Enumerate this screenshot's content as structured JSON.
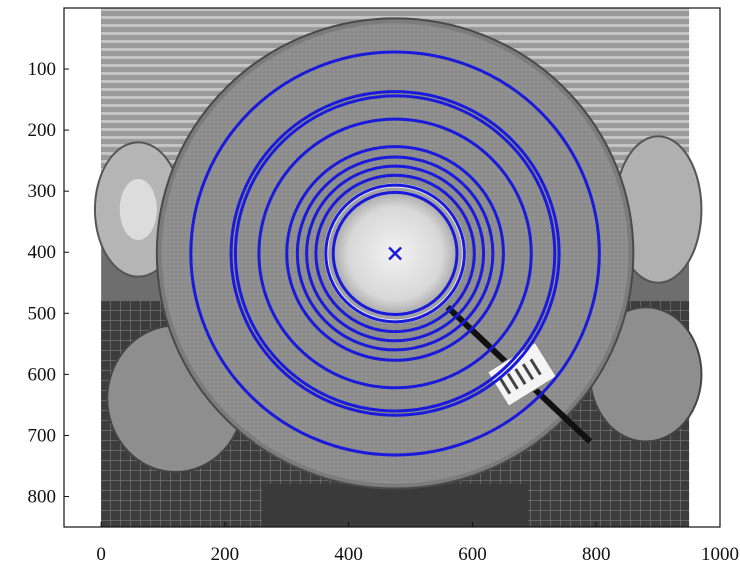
{
  "chart_data": {
    "type": "scatter",
    "title": "",
    "xlabel": "",
    "ylabel": "",
    "xlim": [
      -60,
      1000
    ],
    "ylim": [
      850,
      0
    ],
    "x_ticks": [
      0,
      200,
      400,
      600,
      800,
      1000
    ],
    "y_ticks": [
      100,
      200,
      300,
      400,
      500,
      600,
      700,
      800
    ],
    "grid": false,
    "background_image": "grayscale photo of a steel coil in a warehouse",
    "center_marker": {
      "x": 475,
      "y": 402,
      "marker": "x",
      "color": "#1a1adb"
    },
    "circles": [
      {
        "cx": 475,
        "cy": 402,
        "r": 330
      },
      {
        "cx": 475,
        "cy": 402,
        "r": 265
      },
      {
        "cx": 475,
        "cy": 402,
        "r": 258
      },
      {
        "cx": 475,
        "cy": 402,
        "r": 220
      },
      {
        "cx": 475,
        "cy": 402,
        "r": 175
      },
      {
        "cx": 475,
        "cy": 402,
        "r": 158
      },
      {
        "cx": 475,
        "cy": 402,
        "r": 143
      },
      {
        "cx": 475,
        "cy": 402,
        "r": 128
      },
      {
        "cx": 475,
        "cy": 402,
        "r": 112
      },
      {
        "cx": 475,
        "cy": 402,
        "r": 100
      }
    ],
    "circle_color": "#1a1adb"
  }
}
